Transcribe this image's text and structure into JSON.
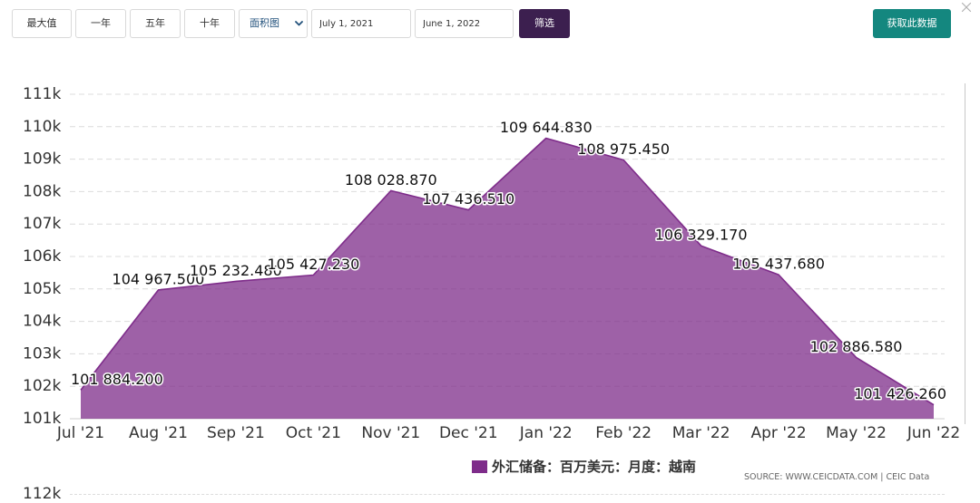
{
  "toolbar": {
    "range_buttons": [
      "最大值",
      "一年",
      "五年",
      "十年"
    ],
    "chart_type": "面积图",
    "start_date": "July 1, 2021",
    "end_date": "June 1, 2022",
    "filter_label": "筛选",
    "get_data_label": "获取此数据"
  },
  "icons": {
    "close": "close-icon",
    "select_chevron": "chevron-down-icon"
  },
  "colors": {
    "filter_button": "#3c1f4f",
    "get_data_button": "#14877f",
    "series_line": "#7e2c8a",
    "series_fill": "#7e2c8a"
  },
  "chart_data": {
    "type": "area",
    "categories": [
      "Jul '21",
      "Aug '21",
      "Sep '21",
      "Oct '21",
      "Nov '21",
      "Dec '21",
      "Jan '22",
      "Feb '22",
      "Mar '22",
      "Apr '22",
      "May '22",
      "Jun '22"
    ],
    "ylim": [
      101000,
      111000
    ],
    "yticks": [
      {
        "value": 101000,
        "label": "101k"
      },
      {
        "value": 102000,
        "label": "102k"
      },
      {
        "value": 103000,
        "label": "103k"
      },
      {
        "value": 104000,
        "label": "104k"
      },
      {
        "value": 105000,
        "label": "105k"
      },
      {
        "value": 106000,
        "label": "106k"
      },
      {
        "value": 107000,
        "label": "107k"
      },
      {
        "value": 108000,
        "label": "108k"
      },
      {
        "value": 109000,
        "label": "109k"
      },
      {
        "value": 110000,
        "label": "110k"
      },
      {
        "value": 111000,
        "label": "111k"
      }
    ],
    "grid": true,
    "legend": "bottom",
    "series": [
      {
        "name": "外汇储备：百万美元：月度：越南",
        "values": [
          101884.2,
          104967.5,
          105232.48,
          105427.23,
          108028.87,
          107436.51,
          109644.83,
          108975.45,
          106329.17,
          105437.68,
          102886.58,
          101426.26
        ],
        "data_labels": [
          "101 884.200",
          "104 967.500",
          "105 232.480",
          "105 427.230",
          "108 028.870",
          "107 436.510",
          "109 644.830",
          "108 975.450",
          "106 329.170",
          "105 437.680",
          "102 886.580",
          "101 426.260"
        ]
      }
    ]
  },
  "source": "SOURCE: WWW.CEICDATA.COM | CEIC Data",
  "next_chart": {
    "ytick_label": "112k"
  }
}
